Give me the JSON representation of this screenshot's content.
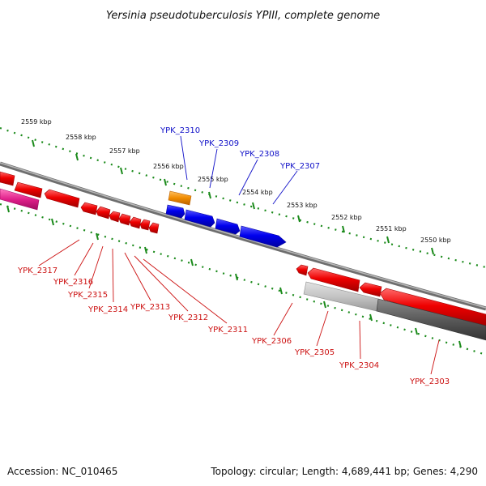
{
  "title": "Yersinia pseudotuberculosis YPIII, complete genome",
  "footer": {
    "accession": "Accession: NC_010465",
    "summary": "Topology: circular; Length: 4,689,441 bp; Genes: 4,290"
  },
  "scale_labels": [
    "2559 kbp",
    "2558 kbp",
    "2557 kbp",
    "2556 kbp",
    "2555 kbp",
    "2554 kbp",
    "2553 kbp",
    "2552 kbp",
    "2551 kbp",
    "2550 kbp"
  ],
  "forward_gene_labels": [
    "YPK_2310",
    "YPK_2309",
    "YPK_2308",
    "YPK_2307"
  ],
  "reverse_gene_labels": [
    "YPK_2317",
    "YPK_2316",
    "YPK_2315",
    "YPK_2314",
    "YPK_2313",
    "YPK_2312",
    "YPK_2311",
    "YPK_2306",
    "YPK_2305",
    "YPK_2304",
    "YPK_2303"
  ],
  "colors": {
    "forward_gene": "#0000ee",
    "reverse_gene": "#ee0000",
    "rna_gene": "#f08c00",
    "pink_feature": "#e0208a",
    "backbone": "#8a8a8a",
    "scale_ticks": "#1a8a1a",
    "blue_label": "#1010c8",
    "red_label": "#cc1111"
  }
}
